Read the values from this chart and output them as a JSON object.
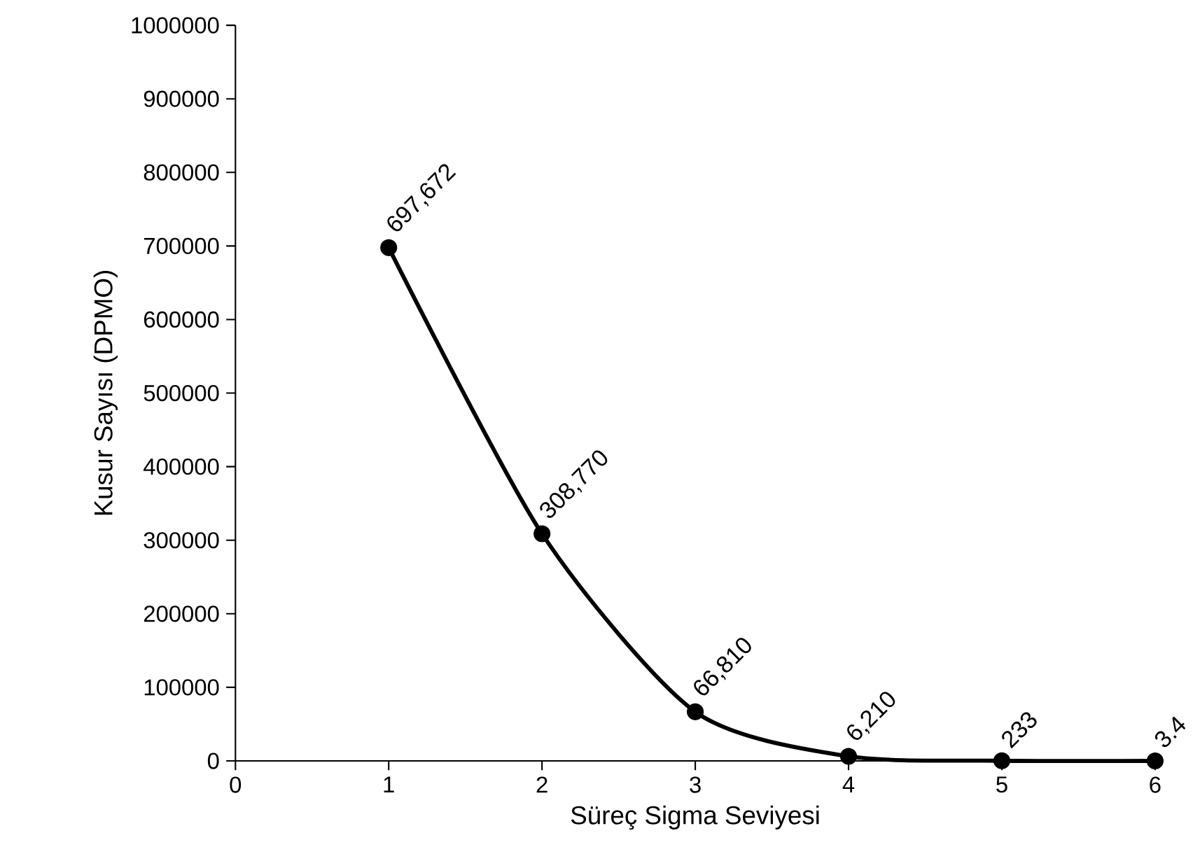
{
  "chart_data": {
    "type": "line",
    "xlabel": "Süreç Sigma Seviyesi",
    "ylabel": "Kusur Sayısı (DPMO)",
    "x": [
      1,
      2,
      3,
      4,
      5,
      6
    ],
    "series": [
      {
        "color": "#000000",
        "values": [
          697672,
          308770,
          66810,
          6210,
          233,
          3.4
        ],
        "value_labels": [
          "697,672",
          "308,770",
          "66,810",
          "6,210",
          "233",
          "3.4"
        ]
      }
    ],
    "xlim": [
      0,
      6
    ],
    "xticks": [
      0,
      1,
      2,
      3,
      4,
      5,
      6
    ],
    "ylim": [
      0,
      1000000
    ],
    "yticks": [
      0,
      100000,
      200000,
      300000,
      400000,
      500000,
      600000,
      700000,
      800000,
      900000,
      1000000
    ],
    "marker": "circle",
    "line_style": "solid"
  }
}
